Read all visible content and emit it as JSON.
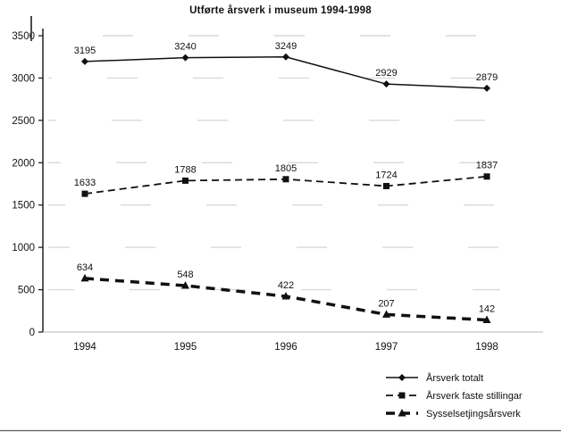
{
  "page": {
    "background": "#ffffff"
  },
  "chart_data": {
    "type": "line",
    "title": "Utførte årsverk i museum 1994-1998",
    "categories": [
      "1994",
      "1995",
      "1996",
      "1997",
      "1998"
    ],
    "series": [
      {
        "name": "Årsverk totalt",
        "values": [
          3195,
          3240,
          3249,
          2929,
          2879
        ],
        "marker": "diamond",
        "line": "solid",
        "width": 1.5
      },
      {
        "name": "Årsverk faste stillingar",
        "values": [
          1633,
          1788,
          1805,
          1724,
          1837
        ],
        "marker": "square",
        "line": "dashed",
        "width": 1.8
      },
      {
        "name": "Sysselsetjingsårsverk",
        "values": [
          634,
          548,
          422,
          207,
          142
        ],
        "marker": "triangle",
        "line": "dashed-heavy",
        "width": 3.5
      }
    ],
    "xlabel": "",
    "ylabel": "",
    "ylim": [
      0,
      3500
    ],
    "yticks": [
      0,
      500,
      1000,
      1500,
      2000,
      2500,
      3000,
      3500
    ],
    "grid": false,
    "show_point_labels": true,
    "legend_position": "bottom-right",
    "colors": {
      "line": "#111111",
      "text": "#111111",
      "background": "#ffffff"
    }
  }
}
